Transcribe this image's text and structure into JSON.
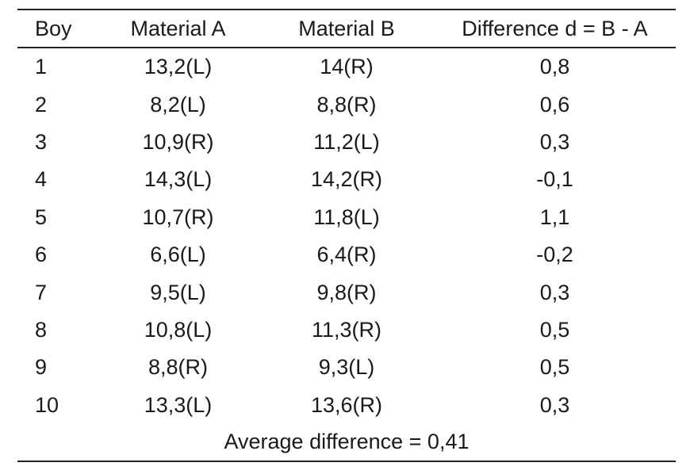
{
  "table": {
    "headers": [
      "Boy",
      "Material A",
      "Material B",
      "Difference d = B - A"
    ],
    "rows": [
      [
        "1",
        "13,2(L)",
        "14(R)",
        "0,8"
      ],
      [
        "2",
        "8,2(L)",
        "8,8(R)",
        "0,6"
      ],
      [
        "3",
        "10,9(R)",
        "11,2(L)",
        "0,3"
      ],
      [
        "4",
        "14,3(L)",
        "14,2(R)",
        "-0,1"
      ],
      [
        "5",
        "10,7(R)",
        "11,8(L)",
        "1,1"
      ],
      [
        "6",
        "6,6(L)",
        "6,4(R)",
        "-0,2"
      ],
      [
        "7",
        "9,5(L)",
        "9,8(R)",
        "0,3"
      ],
      [
        "8",
        "10,8(L)",
        "11,3(R)",
        "0,5"
      ],
      [
        "9",
        "8,8(R)",
        "9,3(L)",
        "0,5"
      ],
      [
        "10",
        "13,3(L)",
        "13,6(R)",
        "0,3"
      ]
    ],
    "footer": "Average difference = 0,41"
  }
}
